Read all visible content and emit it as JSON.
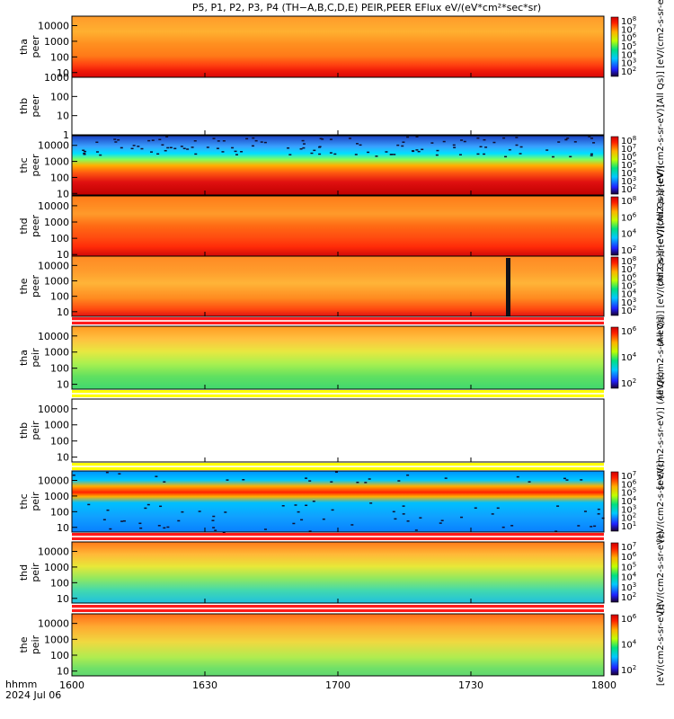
{
  "title": "P5, P1, P2, P3, P4 (TH−A,B,C,D,E) PEIR,PEER EFlux eV/(eV*cm²*sec*sr)",
  "time_axis": {
    "label_line1": "hhmm",
    "label_line2": "2024 Jul 06",
    "ticks": [
      "1600",
      "1630",
      "1700",
      "1730",
      "1800"
    ]
  },
  "colors": {
    "white_band": "#ffffff",
    "red_band": "#ff1a1a",
    "yellow_band": "#ffff00"
  },
  "chart_data": [
    {
      "type": "heatmap",
      "probe": "tha",
      "species": "peer",
      "ylabel": "tha\npeer",
      "ylim": [
        5,
        40000
      ],
      "yscale": "log",
      "yticks": [
        "10",
        "100",
        "1000",
        "10000"
      ],
      "colorbar_label": "(All Qs)] [eV/(cm2-s-sr-eV)]",
      "colorbar_ticks": [
        "10^2",
        "10^3",
        "10^4",
        "10^5",
        "10^6",
        "10^7",
        "10^8"
      ],
      "data_present": true
    },
    {
      "type": "heatmap",
      "probe": "thb",
      "species": "peer",
      "ylabel": "thb\npeer",
      "ylim": [
        1,
        1000
      ],
      "yscale": "log",
      "yticks": [
        "1",
        "10",
        "100",
        "1000"
      ],
      "colorbar_label": "",
      "colorbar_ticks": [],
      "data_present": false
    },
    {
      "type": "heatmap",
      "probe": "thc",
      "species": "peer",
      "ylabel": "thc\npeer",
      "ylim": [
        8,
        40000
      ],
      "yscale": "log",
      "yticks": [
        "10",
        "100",
        "1000",
        "10000"
      ],
      "colorbar_label": "(All Qs)] [eV/(cm2-s-sr-eV)]",
      "colorbar_ticks": [
        "10^2",
        "10^3",
        "10^4",
        "10^5",
        "10^6",
        "10^7",
        "10^8"
      ],
      "data_present": true
    },
    {
      "type": "heatmap",
      "probe": "thd",
      "species": "peer",
      "ylabel": "thd\npeer",
      "ylim": [
        8,
        40000
      ],
      "yscale": "log",
      "yticks": [
        "10",
        "100",
        "1000",
        "10000"
      ],
      "colorbar_label": "(All Qs)] [eV/(cm2-s-sr-eV)]",
      "colorbar_ticks": [
        "10^2",
        "10^4",
        "10^6",
        "10^8"
      ],
      "data_present": true
    },
    {
      "type": "heatmap",
      "probe": "the",
      "species": "peer",
      "ylabel": "the\npeer",
      "ylim": [
        5,
        40000
      ],
      "yscale": "log",
      "yticks": [
        "10",
        "100",
        "1000",
        "10000"
      ],
      "colorbar_label": "(All Qs)] [eV/(cm2-s-sr-eV)]",
      "colorbar_ticks": [
        "10^2",
        "10^3",
        "10^4",
        "10^5",
        "10^6",
        "10^7",
        "10^8"
      ],
      "data_present": true
    },
    {
      "type": "heatmap",
      "probe": "tha",
      "species": "peir",
      "ylabel": "tha\npeir",
      "ylim": [
        5,
        40000
      ],
      "yscale": "log",
      "yticks": [
        "10",
        "100",
        "1000",
        "10000"
      ],
      "colorbar_label": "[eV/(cm2-s-sr-eV)]",
      "colorbar_ticks": [
        "10^2",
        "10^4",
        "10^6"
      ],
      "data_present": true
    },
    {
      "type": "heatmap",
      "probe": "thb",
      "species": "peir",
      "ylabel": "thb\npeir",
      "ylim": [
        5,
        40000
      ],
      "yscale": "log",
      "yticks": [
        "10",
        "100",
        "1000",
        "10000"
      ],
      "colorbar_label": "[eV/(cm2-s-sr-eV)] (All Qs)",
      "colorbar_ticks": [],
      "data_present": false
    },
    {
      "type": "heatmap",
      "probe": "thc",
      "species": "peir",
      "ylabel": "thc\npeir",
      "ylim": [
        5,
        40000
      ],
      "yscale": "log",
      "yticks": [
        "10",
        "100",
        "1000",
        "10000"
      ],
      "colorbar_label": "[eV/(cm2-s-sr-eV)]",
      "colorbar_ticks": [
        "10^1",
        "10^2",
        "10^3",
        "10^4",
        "10^5",
        "10^6",
        "10^7"
      ],
      "data_present": true
    },
    {
      "type": "heatmap",
      "probe": "thd",
      "species": "peir",
      "ylabel": "thd\npeir",
      "ylim": [
        5,
        40000
      ],
      "yscale": "log",
      "yticks": [
        "10",
        "100",
        "1000",
        "10000"
      ],
      "colorbar_label": "[eV/(cm2-s-sr-eV)]",
      "colorbar_ticks": [
        "10^2",
        "10^3",
        "10^4",
        "10^5",
        "10^6",
        "10^7"
      ],
      "data_present": true
    },
    {
      "type": "heatmap",
      "probe": "the",
      "species": "peir",
      "ylabel": "the\npeir",
      "ylim": [
        5,
        40000
      ],
      "yscale": "log",
      "yticks": [
        "10",
        "100",
        "1000",
        "10000"
      ],
      "colorbar_label": "[eV/(cm2-s-sr-eV)]",
      "colorbar_ticks": [
        "10^2",
        "10^4",
        "10^6"
      ],
      "data_present": true
    }
  ]
}
